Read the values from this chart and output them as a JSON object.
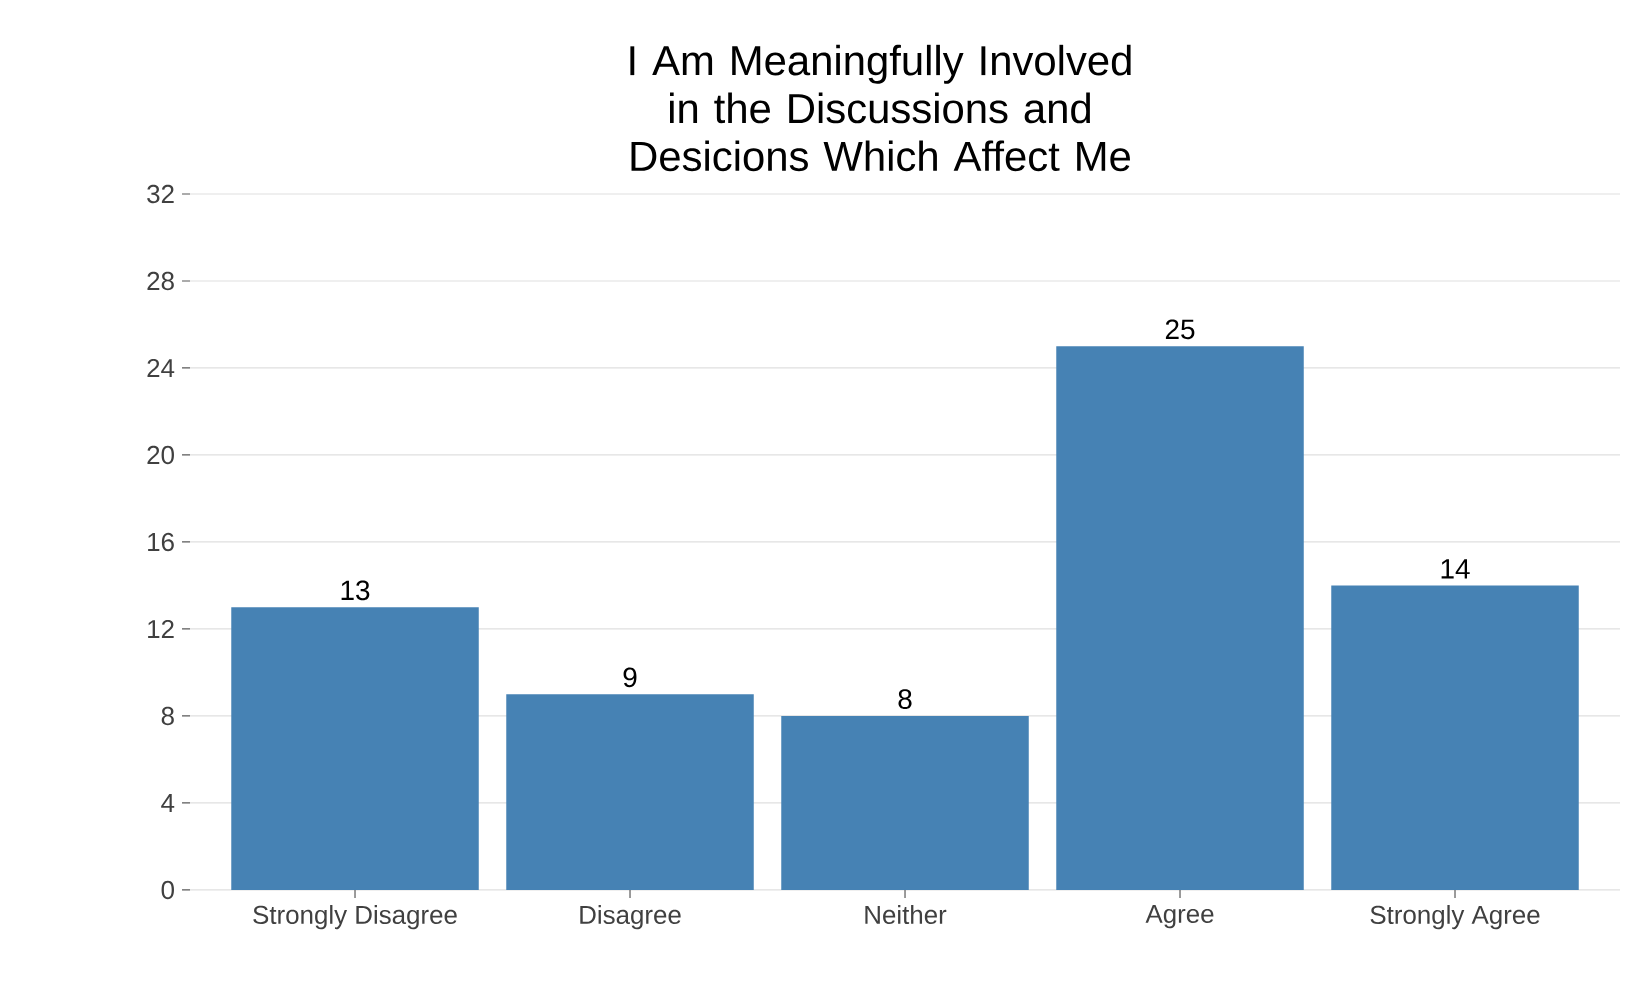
{
  "chart_data": {
    "type": "bar",
    "title": "I Am Meaningfully Involved in the Discussions and Desicions Which Affect Me",
    "categories": [
      "Strongly Disagree",
      "Disagree",
      "Neither",
      "Agree",
      "Strongly Agree"
    ],
    "values": [
      13,
      9,
      8,
      25,
      14
    ],
    "color": "#4682b4",
    "ylim": [
      0,
      32
    ],
    "yticks": [
      0,
      4,
      8,
      12,
      16,
      20,
      24,
      28,
      32
    ],
    "grid": "y",
    "data_labels": true
  }
}
